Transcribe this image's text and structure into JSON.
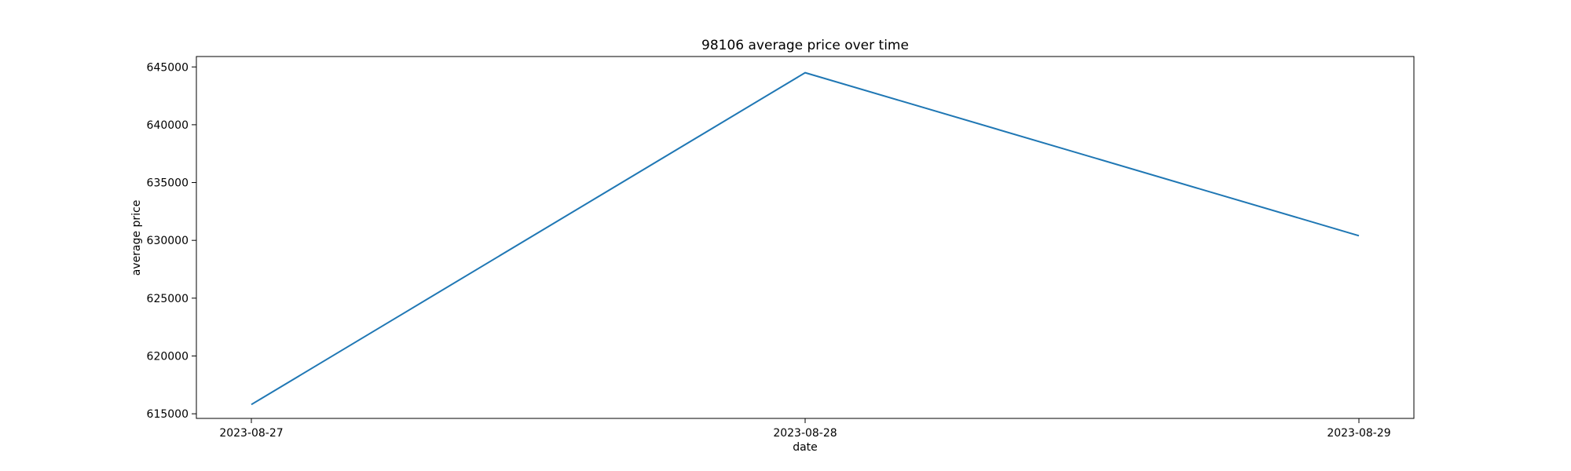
{
  "chart_data": {
    "type": "line",
    "title": "98106 average price over time",
    "xlabel": "date",
    "ylabel": "average price",
    "x": [
      "2023-08-27",
      "2023-08-28",
      "2023-08-29"
    ],
    "series": [
      {
        "values": [
          615800,
          644500,
          630400
        ]
      }
    ],
    "ylim": [
      614600,
      645900
    ],
    "yticks": [
      615000,
      620000,
      625000,
      630000,
      635000,
      640000,
      645000
    ],
    "xticks": [
      "2023-08-27",
      "2023-08-28",
      "2023-08-29"
    ],
    "grid": false,
    "colors": {
      "line": "#1f77b4",
      "axes": "#000000"
    }
  }
}
